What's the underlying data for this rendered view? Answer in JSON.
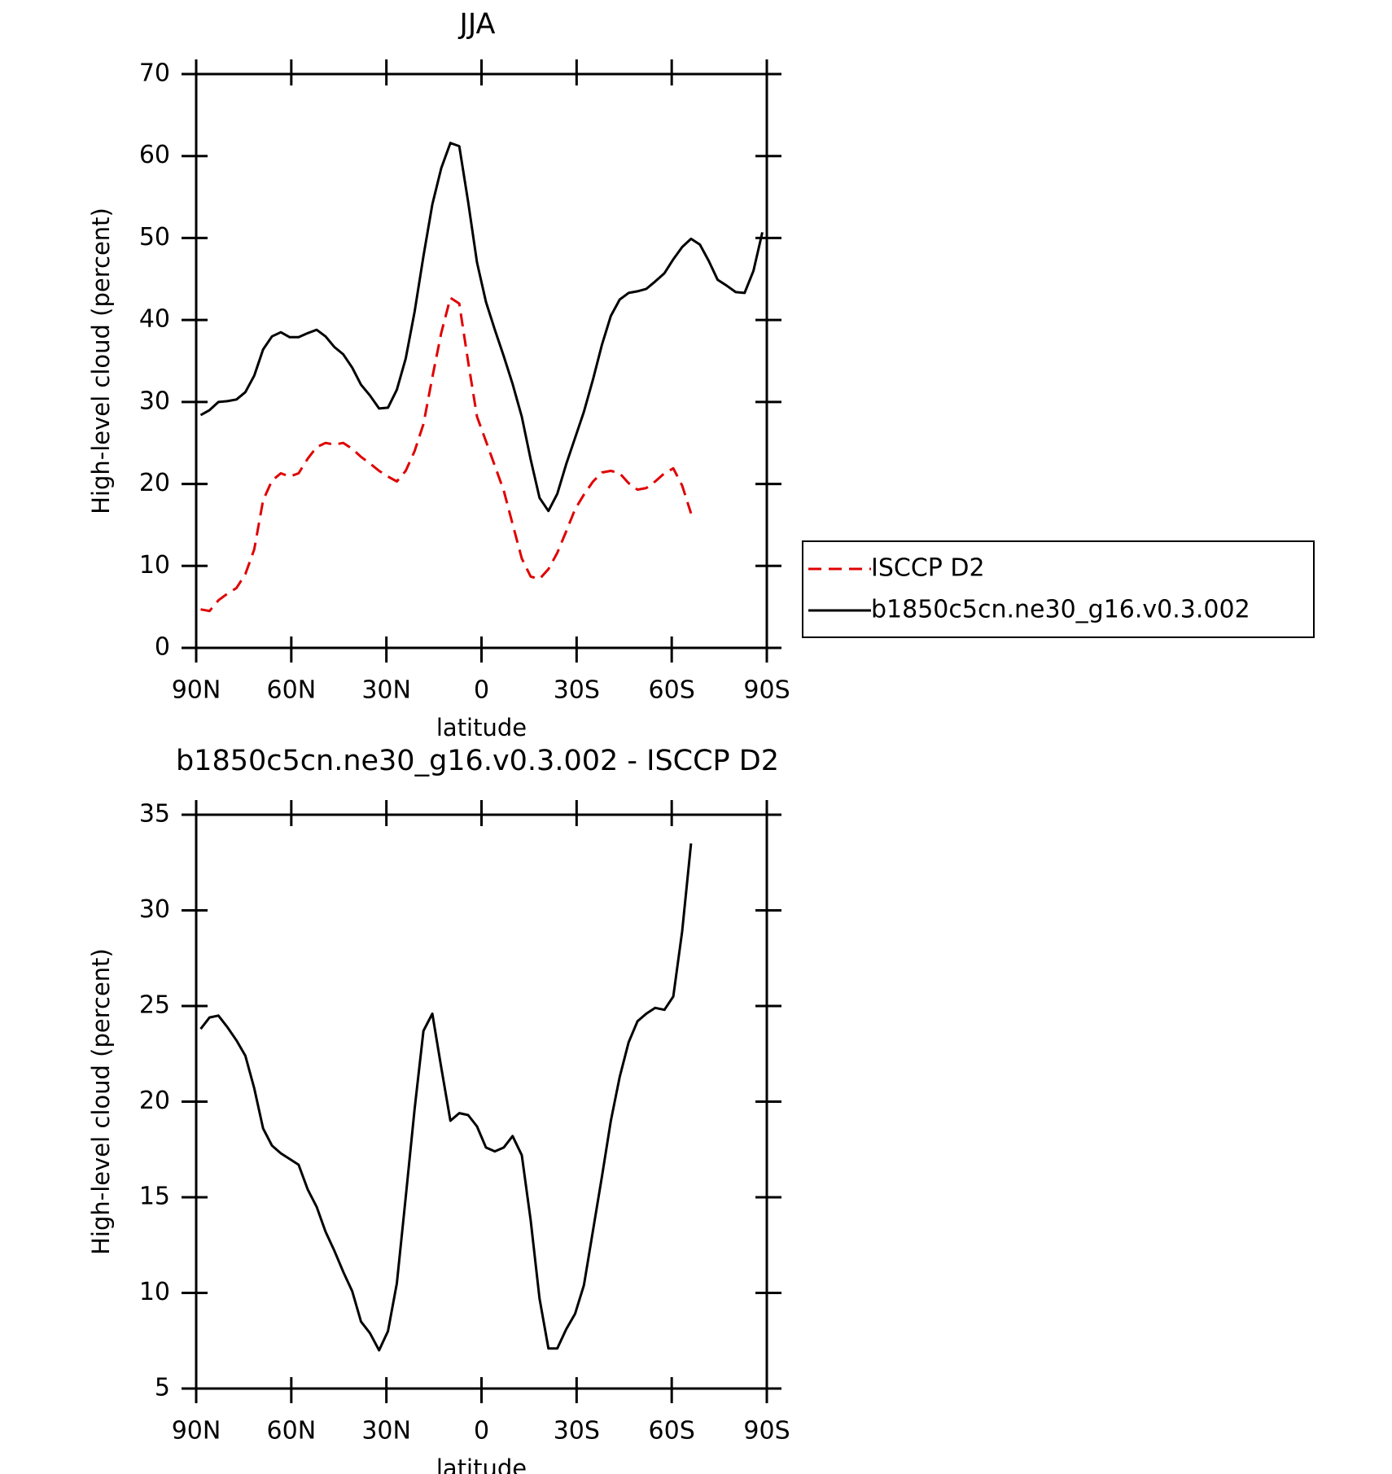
{
  "chart_data": [
    {
      "type": "line",
      "title": "JJA",
      "x_label": "latitude",
      "y_label": "High-level cloud (percent)",
      "x": [
        88.6,
        85.8,
        83.0,
        80.2,
        77.3,
        74.5,
        71.7,
        68.9,
        66.1,
        63.3,
        60.5,
        57.7,
        54.8,
        52.0,
        49.2,
        46.4,
        43.6,
        40.8,
        38.0,
        35.2,
        32.3,
        29.5,
        26.7,
        23.9,
        21.1,
        18.3,
        15.5,
        12.7,
        9.8,
        7.0,
        4.2,
        1.4,
        -1.4,
        -4.2,
        -7.0,
        -9.8,
        -12.7,
        -15.5,
        -18.3,
        -21.1,
        -23.9,
        -26.7,
        -29.5,
        -32.3,
        -35.2,
        -38.0,
        -40.8,
        -43.6,
        -46.4,
        -49.2,
        -52.0,
        -54.8,
        -57.7,
        -60.5,
        -63.3,
        -66.1,
        -68.9,
        -71.7,
        -74.5,
        -77.3,
        -80.2,
        -83.0,
        -85.8,
        -88.6
      ],
      "xlim": [
        90,
        -90
      ],
      "xticks": [
        {
          "value": 90,
          "label": "90N"
        },
        {
          "value": 60,
          "label": "60N"
        },
        {
          "value": 30,
          "label": "30N"
        },
        0,
        {
          "value": -30,
          "label": "30S"
        },
        {
          "value": -60,
          "label": "60S"
        },
        {
          "value": -90,
          "label": "90S"
        }
      ],
      "ylim": [
        0,
        70
      ],
      "yticks": [
        0,
        10,
        20,
        30,
        40,
        50,
        60,
        70
      ],
      "legend": "right",
      "series": [
        {
          "name": "ISCCP D2",
          "color": "#e00000",
          "dash": true,
          "values": [
            4.7,
            4.5,
            5.8,
            6.6,
            7.3,
            9.0,
            12.0,
            18.0,
            20.4,
            21.3,
            20.9,
            21.3,
            23.1,
            24.5,
            25.0,
            24.8,
            25.0,
            24.3,
            23.3,
            22.5,
            21.6,
            20.9,
            20.3,
            21.6,
            24.0,
            27.3,
            33.0,
            38.4,
            42.7,
            42.0,
            34.9,
            28.2,
            25.2,
            22.2,
            19.2,
            15.1,
            10.9,
            8.7,
            8.4,
            9.6,
            11.6,
            14.2,
            16.9,
            18.7,
            20.3,
            21.4,
            21.6,
            21.3,
            20.1,
            19.3,
            19.5,
            20.3,
            21.3,
            21.9,
            19.8,
            16.4,
            null,
            null,
            null,
            null,
            null,
            null,
            null,
            null
          ]
        },
        {
          "name": "b1850c5cn.ne30_g16.v0.3.002",
          "color": "#000000",
          "dash": false,
          "values": [
            28.4,
            29.0,
            30.0,
            30.1,
            30.3,
            31.2,
            33.2,
            36.4,
            38.0,
            38.5,
            37.9,
            37.9,
            38.4,
            38.8,
            38.0,
            36.7,
            35.8,
            34.2,
            32.1,
            30.8,
            29.2,
            29.3,
            31.5,
            35.3,
            41.0,
            47.8,
            54.1,
            58.5,
            61.6,
            61.2,
            54.4,
            47.0,
            42.2,
            38.8,
            35.6,
            32.2,
            28.2,
            23.0,
            18.3,
            16.7,
            18.8,
            22.4,
            25.6,
            28.8,
            32.8,
            37.0,
            40.5,
            42.5,
            43.3,
            43.5,
            43.8,
            44.7,
            45.7,
            47.4,
            48.9,
            49.9,
            49.2,
            47.2,
            44.9,
            44.2,
            43.4,
            43.3,
            46.0,
            50.7
          ]
        }
      ]
    },
    {
      "type": "line",
      "title": "b1850c5cn.ne30_g16.v0.3.002 - ISCCP D2",
      "x_label": "latitude",
      "y_label": "High-level cloud (percent)",
      "x": [
        88.6,
        85.8,
        83.0,
        80.2,
        77.3,
        74.5,
        71.7,
        68.9,
        66.1,
        63.3,
        60.5,
        57.7,
        54.8,
        52.0,
        49.2,
        46.4,
        43.6,
        40.8,
        38.0,
        35.2,
        32.3,
        29.5,
        26.7,
        23.9,
        21.1,
        18.3,
        15.5,
        12.7,
        9.8,
        7.0,
        4.2,
        1.4,
        -1.4,
        -4.2,
        -7.0,
        -9.8,
        -12.7,
        -15.5,
        -18.3,
        -21.1,
        -23.9,
        -26.7,
        -29.5,
        -32.3,
        -35.2,
        -38.0,
        -40.8,
        -43.6,
        -46.4,
        -49.2,
        -52.0,
        -54.8,
        -57.7,
        -60.5,
        -63.3,
        -66.1,
        -68.9,
        -71.7,
        -74.5,
        -77.3,
        -80.2,
        -83.0,
        -85.8,
        -88.6
      ],
      "xlim": [
        90,
        -90
      ],
      "xticks": [
        {
          "value": 90,
          "label": "90N"
        },
        {
          "value": 60,
          "label": "60N"
        },
        {
          "value": 30,
          "label": "30N"
        },
        0,
        {
          "value": -30,
          "label": "30S"
        },
        {
          "value": -60,
          "label": "60S"
        },
        {
          "value": -90,
          "label": "90S"
        }
      ],
      "ylim": [
        5,
        35
      ],
      "yticks": [
        5,
        10,
        15,
        20,
        25,
        30,
        35
      ],
      "series": [
        {
          "color": "#000000",
          "dash": false,
          "values": [
            23.8,
            24.4,
            24.5,
            23.9,
            23.2,
            22.4,
            20.7,
            18.6,
            17.7,
            17.3,
            17.0,
            16.7,
            15.4,
            14.5,
            13.2,
            12.2,
            11.1,
            10.1,
            8.5,
            7.9,
            7.0,
            8.0,
            10.5,
            15.0,
            19.6,
            23.7,
            24.6,
            21.8,
            19.0,
            19.4,
            19.3,
            18.7,
            17.6,
            17.4,
            17.6,
            18.2,
            17.2,
            13.8,
            9.7,
            7.1,
            7.1,
            8.1,
            8.9,
            10.4,
            13.3,
            16.1,
            19.0,
            21.3,
            23.1,
            24.2,
            24.6,
            24.9,
            24.8,
            25.5,
            28.9,
            33.5,
            null,
            null,
            null,
            null,
            null,
            null,
            null,
            null
          ]
        }
      ]
    }
  ]
}
